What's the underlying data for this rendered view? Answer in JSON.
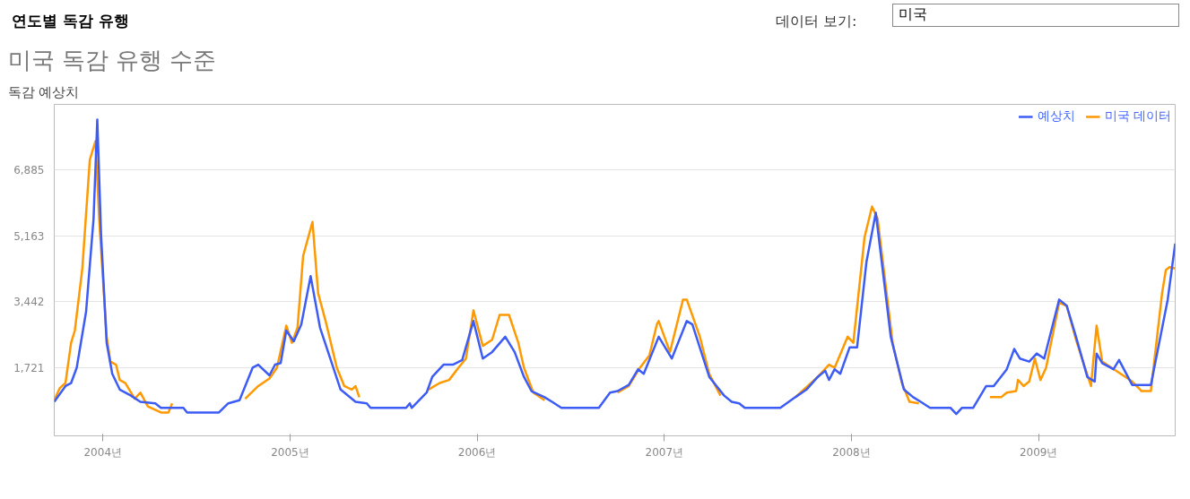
{
  "chart_data": {
    "type": "line",
    "title": "연도별 독감 유행",
    "subtitle": "미국 독감 유행 수준",
    "ylabel": "독감 예상치",
    "annotations": [
      "데이터 보기:",
      "미국"
    ],
    "xlim": [
      2003.74,
      2009.73
    ],
    "ylim": [
      -60,
      8600
    ],
    "xticks": [
      {
        "value": 2004,
        "label": "2004년"
      },
      {
        "value": 2005,
        "label": "2005년"
      },
      {
        "value": 2006,
        "label": "2006년"
      },
      {
        "value": 2007,
        "label": "2007년"
      },
      {
        "value": 2008,
        "label": "2008년"
      },
      {
        "value": 2009,
        "label": "2009년"
      }
    ],
    "yticks": [
      {
        "value": 1721,
        "label": "1,721"
      },
      {
        "value": 3442,
        "label": "3,442"
      },
      {
        "value": 5163,
        "label": "5,163"
      },
      {
        "value": 6885,
        "label": "6,885"
      }
    ],
    "grid": "y",
    "legend": "top right",
    "line_style": "solid",
    "series": [
      {
        "name": "미국 데이터",
        "color": "#ff9900",
        "x": [
          2003.74,
          2003.77,
          2003.8,
          2003.83,
          2003.85,
          2003.89,
          2003.93,
          2003.96,
          2003.98,
          2004.02,
          2004.04,
          2004.07,
          2004.09,
          2004.12,
          2004.17,
          2004.2,
          2004.24,
          2004.31,
          2004.35,
          2004.37,
          2004.5,
          2004.76,
          2004.83,
          2004.89,
          2004.93,
          2004.98,
          2005.01,
          2005.04,
          2005.07,
          2005.12,
          2005.15,
          2005.19,
          2005.25,
          2005.29,
          2005.33,
          2005.35,
          2005.37,
          2005.6,
          2005.74,
          2005.8,
          2005.85,
          2005.9,
          2005.94,
          2005.98,
          2006.03,
          2006.08,
          2006.12,
          2006.17,
          2006.22,
          2006.25,
          2006.3,
          2006.36,
          2006.5,
          2006.75,
          2006.81,
          2006.87,
          2006.92,
          2006.96,
          2006.97,
          2007.03,
          2007.1,
          2007.12,
          2007.19,
          2007.24,
          2007.3,
          2007.5,
          2007.7,
          2007.82,
          2007.88,
          2007.91,
          2007.98,
          2008.01,
          2008.07,
          2008.11,
          2008.14,
          2008.22,
          2008.27,
          2008.31,
          2008.36,
          2008.5,
          2008.74,
          2008.8,
          2008.83,
          2008.88,
          2008.89,
          2008.92,
          2008.95,
          2008.98,
          2009.01,
          2009.04,
          2009.11,
          2009.15,
          2009.2,
          2009.28,
          2009.31,
          2009.34,
          2009.39,
          2009.5,
          2009.55,
          2009.6,
          2009.66,
          2009.68,
          2009.7,
          2009.73
        ],
        "values": [
          870,
          1190,
          1320,
          2370,
          2690,
          4310,
          7150,
          7640,
          5610,
          2530,
          1880,
          1800,
          1400,
          1320,
          910,
          1070,
          710,
          550,
          550,
          790,
          null,
          910,
          1240,
          1440,
          1720,
          2820,
          2370,
          2770,
          4640,
          5530,
          3670,
          2940,
          1720,
          1240,
          1150,
          1240,
          950,
          null,
          1150,
          1320,
          1400,
          1720,
          1960,
          3220,
          2290,
          2450,
          3100,
          3100,
          2370,
          1720,
          1070,
          870,
          null,
          1070,
          1240,
          1720,
          2040,
          2850,
          2940,
          2130,
          3500,
          3500,
          2530,
          1560,
          990,
          null,
          950,
          1480,
          1800,
          1720,
          2530,
          2370,
          5130,
          5930,
          5610,
          2370,
          1320,
          830,
          790,
          null,
          950,
          950,
          1070,
          1110,
          1400,
          1240,
          1360,
          1960,
          1400,
          1720,
          3420,
          3340,
          2450,
          1240,
          2820,
          1880,
          1720,
          1360,
          1110,
          1110,
          3670,
          4270,
          4350,
          4310
        ]
      },
      {
        "name": "예상치",
        "color": "#3d5cf5",
        "x": [
          2003.74,
          2003.8,
          2003.83,
          2003.86,
          2003.91,
          2003.95,
          2003.97,
          2003.99,
          2004.02,
          2004.05,
          2004.09,
          2004.15,
          2004.2,
          2004.28,
          2004.31,
          2004.43,
          2004.45,
          2004.62,
          2004.67,
          2004.73,
          2004.8,
          2004.83,
          2004.89,
          2004.92,
          2004.95,
          2004.98,
          2005.02,
          2005.06,
          2005.11,
          2005.16,
          2005.27,
          2005.35,
          2005.41,
          2005.43,
          2005.62,
          2005.64,
          2005.65,
          2005.73,
          2005.76,
          2005.82,
          2005.87,
          2005.92,
          2005.98,
          2006.03,
          2006.08,
          2006.15,
          2006.2,
          2006.25,
          2006.29,
          2006.36,
          2006.4,
          2006.45,
          2006.65,
          2006.71,
          2006.75,
          2006.81,
          2006.86,
          2006.89,
          2006.91,
          2006.97,
          2007.04,
          2007.12,
          2007.15,
          2007.24,
          2007.32,
          2007.36,
          2007.4,
          2007.43,
          2007.62,
          2007.7,
          2007.76,
          2007.82,
          2007.86,
          2007.88,
          2007.91,
          2007.94,
          2007.99,
          2008.03,
          2008.08,
          2008.13,
          2008.21,
          2008.28,
          2008.33,
          2008.37,
          2008.42,
          2008.53,
          2008.56,
          2008.59,
          2008.65,
          2008.72,
          2008.76,
          2008.83,
          2008.87,
          2008.9,
          2008.95,
          2008.99,
          2009.03,
          2009.11,
          2009.15,
          2009.2,
          2009.26,
          2009.3,
          2009.31,
          2009.34,
          2009.4,
          2009.43,
          2009.5,
          2009.6,
          2009.69,
          2009.73
        ],
        "values": [
          830,
          1240,
          1320,
          1720,
          3180,
          5610,
          8200,
          5210,
          2370,
          1560,
          1150,
          990,
          830,
          790,
          670,
          670,
          550,
          550,
          790,
          870,
          1720,
          1800,
          1520,
          1800,
          1840,
          2690,
          2410,
          2850,
          4110,
          2770,
          1150,
          830,
          790,
          670,
          670,
          790,
          670,
          1070,
          1480,
          1800,
          1800,
          1920,
          2940,
          1960,
          2130,
          2530,
          2130,
          1480,
          1110,
          950,
          830,
          670,
          670,
          1070,
          1110,
          1270,
          1680,
          1560,
          1800,
          2530,
          1960,
          2940,
          2850,
          1480,
          990,
          830,
          790,
          670,
          670,
          950,
          1150,
          1480,
          1640,
          1400,
          1680,
          1560,
          2250,
          2250,
          4480,
          5770,
          2530,
          1150,
          950,
          830,
          670,
          670,
          510,
          670,
          670,
          1240,
          1240,
          1680,
          2210,
          1960,
          1880,
          2090,
          1960,
          3500,
          3340,
          2530,
          1480,
          1360,
          2090,
          1840,
          1680,
          1920,
          1270,
          1270,
          3500,
          4960
        ]
      }
    ]
  }
}
